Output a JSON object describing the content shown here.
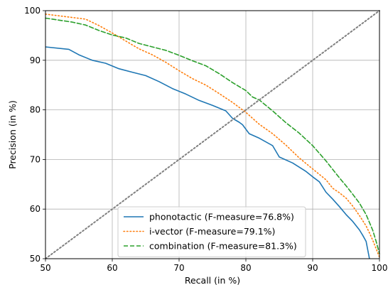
{
  "chart_data": {
    "type": "line",
    "xlabel": "Recall (in %)",
    "ylabel": "Precision (in %)",
    "xlim": [
      50,
      100
    ],
    "ylim": [
      50,
      100
    ],
    "xticks": [
      "50",
      "60",
      "70",
      "80",
      "90",
      "100"
    ],
    "yticks": [
      "50",
      "60",
      "70",
      "80",
      "90",
      "100"
    ],
    "grid": true,
    "legend_position": "lower-center",
    "series": [
      {
        "name": "phonotactic (F-measure=76.8%)",
        "color": "#1f77b4",
        "dash": "solid",
        "x": [
          50,
          53.5,
          55,
          57,
          59,
          61,
          63,
          65,
          67,
          69,
          71,
          73,
          75,
          77,
          78,
          79,
          79.5,
          80.5,
          82,
          84,
          85,
          87,
          89,
          90,
          91,
          92,
          93,
          94,
          95,
          96,
          97,
          97.5,
          98,
          98.5
        ],
        "y": [
          92.7,
          92.2,
          91.1,
          90.0,
          89.4,
          88.3,
          87.6,
          86.9,
          85.7,
          84.3,
          83.2,
          81.9,
          80.9,
          79.8,
          78.3,
          77.5,
          77.0,
          75.2,
          74.3,
          72.8,
          70.5,
          69.3,
          67.6,
          66.5,
          65.5,
          63.4,
          62.0,
          60.5,
          58.9,
          57.5,
          55.8,
          54.7,
          53.5,
          50.0
        ]
      },
      {
        "name": "i-vector (F-measure=79.1%)",
        "color": "#ff7f0e",
        "dash": "dotted",
        "x": [
          50,
          53,
          56,
          58,
          60,
          62,
          64,
          66,
          68,
          70,
          72,
          74,
          76,
          78,
          80,
          82,
          84,
          86,
          88,
          90,
          92,
          93,
          94,
          95,
          96,
          97,
          98,
          98.5,
          99,
          99.5,
          100
        ],
        "y": [
          99.3,
          98.8,
          98.3,
          97.0,
          95.5,
          93.9,
          92.3,
          91.1,
          89.6,
          87.9,
          86.3,
          85.0,
          83.3,
          81.5,
          79.5,
          77.1,
          75.2,
          72.9,
          70.3,
          68.1,
          65.9,
          64.2,
          63.3,
          62.2,
          60.6,
          58.7,
          56.6,
          55.2,
          53.7,
          52.0,
          50.3
        ]
      },
      {
        "name": "combination (F-measure=81.3%)",
        "color": "#2ca02c",
        "dash": "dashed",
        "x": [
          50,
          54,
          56,
          58,
          60,
          62,
          64,
          66,
          68,
          70,
          72,
          74,
          76,
          78,
          80,
          81,
          82,
          84,
          86,
          88,
          90,
          92,
          93,
          94,
          95,
          96,
          97,
          98,
          99,
          99.5,
          100
        ],
        "y": [
          98.5,
          97.7,
          97.1,
          96.0,
          95.1,
          94.5,
          93.4,
          92.7,
          92.0,
          91.0,
          89.9,
          88.9,
          87.3,
          85.5,
          83.9,
          82.6,
          82.0,
          79.8,
          77.4,
          75.3,
          72.8,
          69.7,
          68.0,
          66.3,
          64.7,
          63.0,
          61.2,
          58.9,
          55.7,
          53.5,
          51.0
        ]
      },
      {
        "name": "",
        "color": "#808080",
        "dash": "diagonal-dotted",
        "x": [
          50,
          100
        ],
        "y": [
          50,
          100
        ]
      }
    ]
  }
}
